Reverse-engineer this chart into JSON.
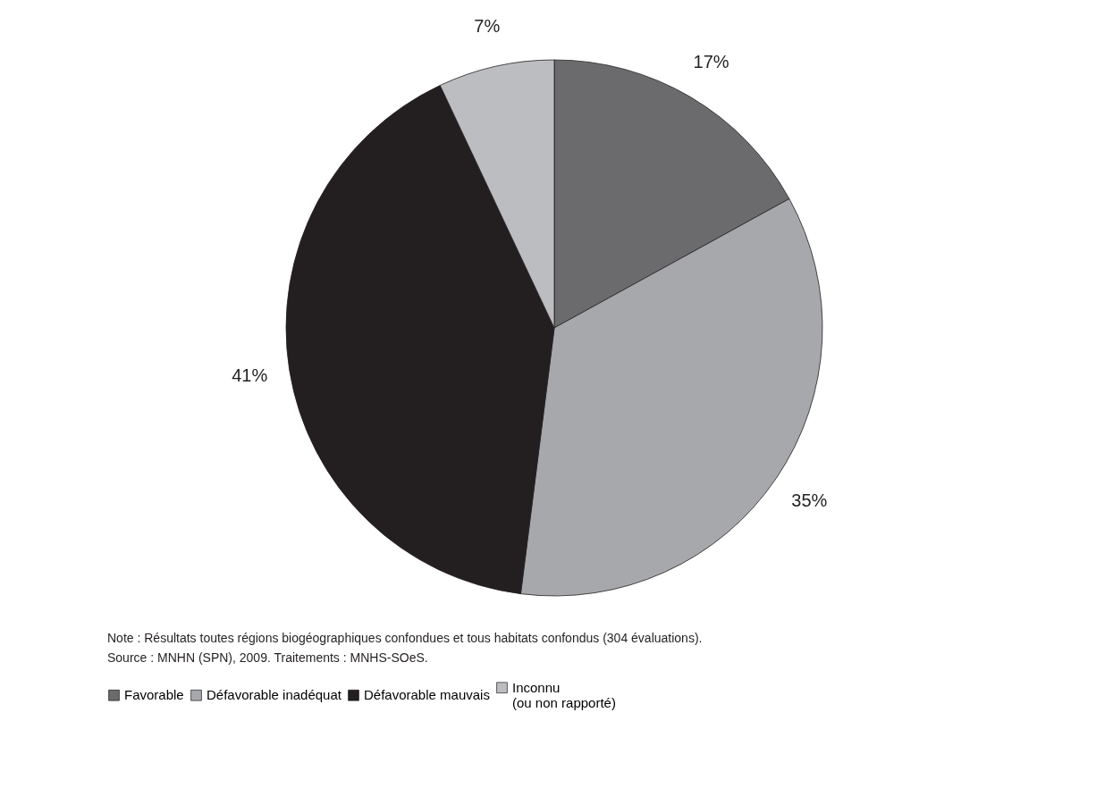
{
  "chart_data": {
    "type": "pie",
    "categories": [
      "Favorable",
      "Défavorable inadéquat",
      "Défavorable mauvais",
      "Inconnu\n(ou non rapporté)"
    ],
    "values": [
      17,
      35,
      41,
      7
    ],
    "colors": [
      "#6b6b6e",
      "#a7a8ab",
      "#231f20",
      "#bcbdc0"
    ],
    "value_labels": [
      "17%",
      "35%",
      "41%",
      "7%"
    ],
    "legend": "bottom",
    "annotations": [
      "Note : Résultats toutes régions biogéographiques confondues et tous habitats confondus (304 évaluations).",
      "Source : MNHN (SPN), 2009. Traitements : MNHS-SOeS."
    ]
  }
}
